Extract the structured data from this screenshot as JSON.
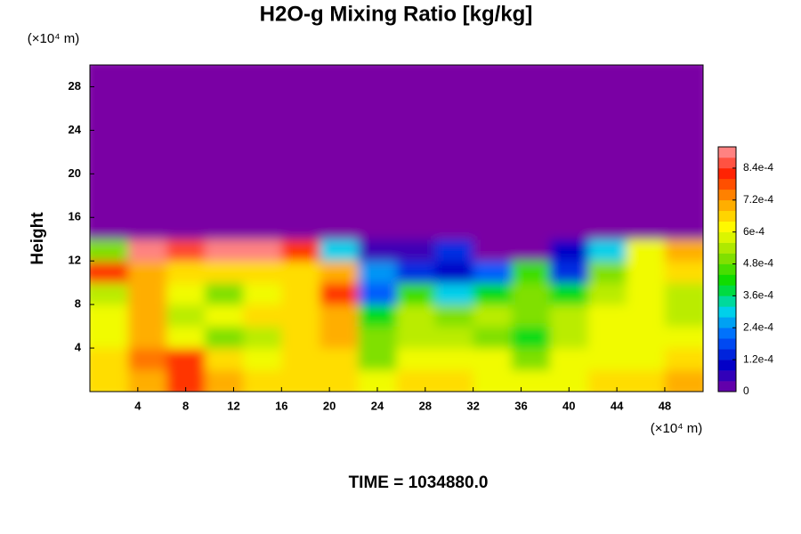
{
  "chart_data": {
    "type": "heatmap",
    "title": "H2O-g Mixing Ratio [kg/kg]",
    "ylabel": "Height",
    "yunit": "(×10⁴ m)",
    "xunit": "(×10⁴ m)",
    "footer": "TIME = 1034880.0",
    "xlim": [
      0,
      51.2
    ],
    "ylim": [
      0,
      30
    ],
    "xticks": [
      4,
      8,
      12,
      16,
      20,
      24,
      28,
      32,
      36,
      40,
      44,
      48
    ],
    "yticks": [
      4,
      8,
      12,
      16,
      20,
      24,
      28
    ],
    "x": [
      1.6,
      4.8,
      8,
      11.2,
      14.4,
      17.6,
      20.8,
      24,
      27.2,
      30.4,
      33.6,
      36.8,
      40,
      43.2,
      46.4,
      49.6
    ],
    "y": [
      1,
      3,
      5,
      7,
      9,
      11,
      13,
      15,
      17,
      19,
      21,
      23,
      25,
      27,
      29
    ],
    "values": [
      [
        0.00065,
        0.0007,
        0.0008,
        0.0007,
        0.00065,
        0.00065,
        0.00065,
        0.0006,
        0.00065,
        0.00065,
        0.0006,
        0.0006,
        0.0006,
        0.00065,
        0.00065,
        0.0007
      ],
      [
        0.00065,
        0.00075,
        0.0008,
        0.00065,
        0.0006,
        0.00065,
        0.00065,
        0.0005,
        0.0006,
        0.0006,
        0.0006,
        0.0005,
        0.0006,
        0.0006,
        0.0006,
        0.00065
      ],
      [
        0.0006,
        0.0007,
        0.0006,
        0.0005,
        0.00055,
        0.00065,
        0.0007,
        0.0005,
        0.00055,
        0.00055,
        0.0005,
        0.0004,
        0.00055,
        0.0006,
        0.0006,
        0.0006
      ],
      [
        0.0006,
        0.0007,
        0.00055,
        0.0006,
        0.00065,
        0.00065,
        0.0007,
        0.0004,
        0.00055,
        0.0005,
        0.00055,
        0.0005,
        0.00055,
        0.0006,
        0.0006,
        0.00055
      ],
      [
        0.00055,
        0.0007,
        0.0006,
        0.0005,
        0.0006,
        0.00065,
        0.0008,
        0.0002,
        0.00045,
        0.0003,
        0.0004,
        0.0005,
        0.0004,
        0.00055,
        0.0006,
        0.00055
      ],
      [
        0.0008,
        0.0007,
        0.00065,
        0.00065,
        0.00065,
        0.00065,
        0.0007,
        0.00025,
        0.00015,
        0.0001,
        0.0002,
        0.00045,
        0.00015,
        0.0005,
        0.0006,
        0.00065
      ],
      [
        0.0005,
        0.0009,
        0.00085,
        0.0009,
        0.0009,
        0.0008,
        0.0003,
        5e-05,
        5e-05,
        0.00015,
        0,
        0,
        0.0001,
        0.0003,
        0.0006,
        0.0007
      ],
      [
        0,
        0,
        0,
        0,
        0,
        0,
        0,
        0,
        0,
        0,
        0,
        0,
        0,
        0,
        0,
        0
      ],
      [
        0,
        0,
        0,
        0,
        0,
        0,
        0,
        0,
        0,
        0,
        0,
        0,
        0,
        0,
        0,
        0
      ],
      [
        0,
        0,
        0,
        0,
        0,
        0,
        0,
        0,
        0,
        0,
        0,
        0,
        0,
        0,
        0,
        0
      ],
      [
        0,
        0,
        0,
        0,
        0,
        0,
        0,
        0,
        0,
        0,
        0,
        0,
        0,
        0,
        0,
        0
      ],
      [
        0,
        0,
        0,
        0,
        0,
        0,
        0,
        0,
        0,
        0,
        0,
        0,
        0,
        0,
        0,
        0
      ],
      [
        0,
        0,
        0,
        0,
        0,
        0,
        0,
        0,
        0,
        0,
        0,
        0,
        0,
        0,
        0,
        0
      ],
      [
        0,
        0,
        0,
        0,
        0,
        0,
        0,
        0,
        0,
        0,
        0,
        0,
        0,
        0,
        0,
        0
      ],
      [
        0,
        0,
        0,
        0,
        0,
        0,
        0,
        0,
        0,
        0,
        0,
        0,
        0,
        0,
        0,
        0
      ]
    ],
    "clim": [
      0,
      0.00092
    ],
    "cticks": [
      0,
      {
        "value": 0.00012,
        "label": "1.2e-4"
      },
      {
        "value": 0.00024,
        "label": "2.4e-4"
      },
      {
        "value": 0.00036,
        "label": "3.6e-4"
      },
      {
        "value": 0.00048,
        "label": "4.8e-4"
      },
      {
        "value": 0.0006,
        "label": "6e-4"
      },
      {
        "value": 0.00072,
        "label": "7.2e-4"
      },
      {
        "value": 0.00084,
        "label": "8.4e-4"
      }
    ],
    "colormap": [
      "#7a00a4",
      "#0000c8",
      "#0060ff",
      "#00d8e8",
      "#00dc00",
      "#90e000",
      "#ffff00",
      "#ffa000",
      "#ff2000",
      "#ff9aa0"
    ]
  }
}
